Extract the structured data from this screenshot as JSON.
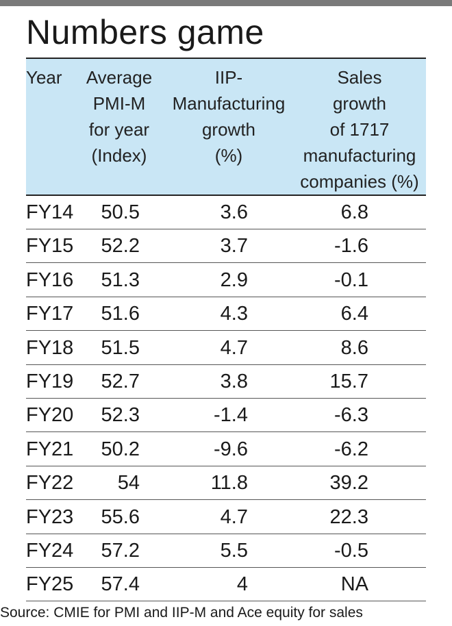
{
  "title": "Numbers game",
  "columns": [
    "Year",
    "Average\nPMI-M\nfor year\n(Index)",
    "IIP-\nManufacturing\ngrowth\n(%)",
    "Sales\ngrowth\nof 1717\nmanufacturing\ncompanies (%)"
  ],
  "rows": [
    [
      "FY14",
      "50.5",
      "3.6",
      "6.8"
    ],
    [
      "FY15",
      "52.2",
      "3.7",
      "-1.6"
    ],
    [
      "FY16",
      "51.3",
      "2.9",
      "-0.1"
    ],
    [
      "FY17",
      "51.6",
      "4.3",
      "6.4"
    ],
    [
      "FY18",
      "51.5",
      "4.7",
      "8.6"
    ],
    [
      "FY19",
      "52.7",
      "3.8",
      "15.7"
    ],
    [
      "FY20",
      "52.3",
      "-1.4",
      "-6.3"
    ],
    [
      "FY21",
      "50.2",
      "-9.6",
      "-6.2"
    ],
    [
      "FY22",
      "54",
      "11.8",
      "39.2"
    ],
    [
      "FY23",
      "55.6",
      "4.7",
      "22.3"
    ],
    [
      "FY24",
      "57.2",
      "5.5",
      "-0.5"
    ],
    [
      "FY25",
      "57.4",
      "4",
      "NA"
    ]
  ],
  "source": "Source: CMIE for PMI and IIP-M and Ace equity for sales",
  "colors": {
    "header_bg": "#c9e6f5",
    "top_bar": "#7a7a7a"
  },
  "chart_data": {
    "type": "table",
    "title": "Numbers game",
    "columns": [
      "Year",
      "Average PMI-M for year (Index)",
      "IIP-Manufacturing growth (%)",
      "Sales growth of 1717 manufacturing companies (%)"
    ],
    "rows": [
      [
        "FY14",
        50.5,
        3.6,
        6.8
      ],
      [
        "FY15",
        52.2,
        3.7,
        -1.6
      ],
      [
        "FY16",
        51.3,
        2.9,
        -0.1
      ],
      [
        "FY17",
        51.6,
        4.3,
        6.4
      ],
      [
        "FY18",
        51.5,
        4.7,
        8.6
      ],
      [
        "FY19",
        52.7,
        3.8,
        15.7
      ],
      [
        "FY20",
        52.3,
        -1.4,
        -6.3
      ],
      [
        "FY21",
        50.2,
        -9.6,
        -6.2
      ],
      [
        "FY22",
        54,
        11.8,
        39.2
      ],
      [
        "FY23",
        55.6,
        4.7,
        22.3
      ],
      [
        "FY24",
        57.2,
        5.5,
        -0.5
      ],
      [
        "FY25",
        57.4,
        4,
        "NA"
      ]
    ]
  }
}
